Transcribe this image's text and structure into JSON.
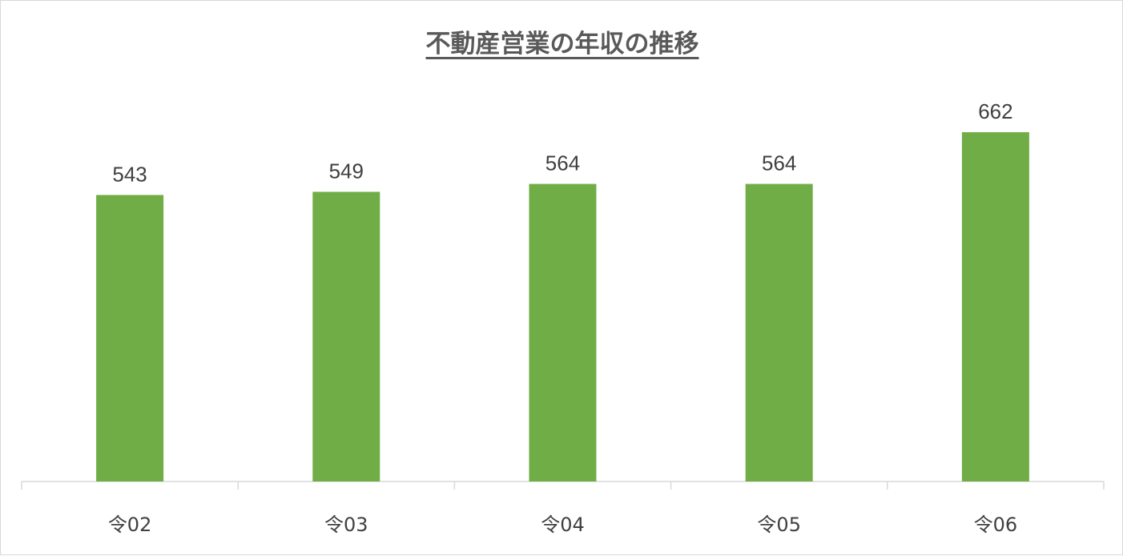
{
  "chart_data": {
    "type": "bar",
    "title": "不動産営業の年収の推移",
    "xlabel": "",
    "ylabel": "",
    "categories": [
      "令02",
      "令03",
      "令04",
      "令05",
      "令06"
    ],
    "values": [
      543,
      549,
      564,
      564,
      662
    ],
    "ylim": [
      0,
      700
    ],
    "grid": false,
    "legend": "none",
    "bar_color": "#70ad47"
  }
}
